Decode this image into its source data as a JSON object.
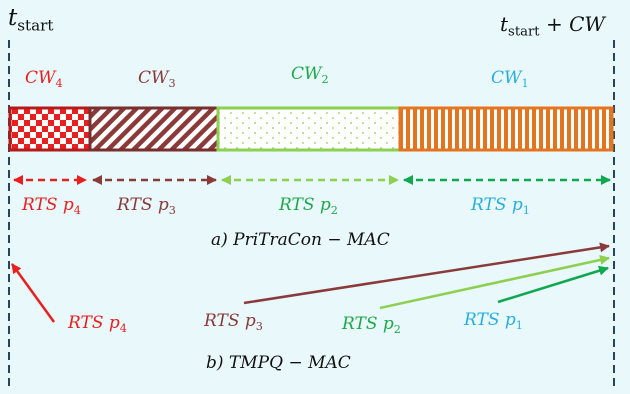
{
  "labels": {
    "t_start": "t",
    "t_start_sub": "start",
    "t_end": "t",
    "t_end_sub": "start",
    "t_end_suffix": "+ CW"
  },
  "windows": [
    {
      "name": "CW",
      "sub": "4",
      "color": "#e81f1f",
      "pattern": "checkerboard"
    },
    {
      "name": "CW",
      "sub": "3",
      "color": "#8b3a3a",
      "pattern": "diagonal-hatch"
    },
    {
      "name": "CW",
      "sub": "2",
      "color": "#1fa84a",
      "pattern": "dots",
      "border": "#8dcf4f"
    },
    {
      "name": "CW",
      "sub": "1",
      "color": "#27aee0",
      "pattern": "vertical-stripes",
      "border": "#e37420"
    }
  ],
  "part_a": {
    "caption": "a) PriTraCon − MAC",
    "rts": [
      {
        "text": "RTS p",
        "sub": "4",
        "color": "#e81f1f"
      },
      {
        "text": "RTS p",
        "sub": "3",
        "color": "#8b3a3a"
      },
      {
        "text": "RTS p",
        "sub": "2",
        "color": "#1fa84a"
      },
      {
        "text": "RTS p",
        "sub": "1",
        "color": "#27aee0"
      }
    ]
  },
  "part_b": {
    "caption": "b) TMPQ − MAC",
    "rts": [
      {
        "text": "RTS p",
        "sub": "4",
        "color": "#e81f1f"
      },
      {
        "text": "RTS p",
        "sub": "3",
        "color": "#8b3a3a"
      },
      {
        "text": "RTS p",
        "sub": "2",
        "color": "#1fa84a"
      },
      {
        "text": "RTS p",
        "sub": "1",
        "color": "#27aee0"
      }
    ]
  }
}
